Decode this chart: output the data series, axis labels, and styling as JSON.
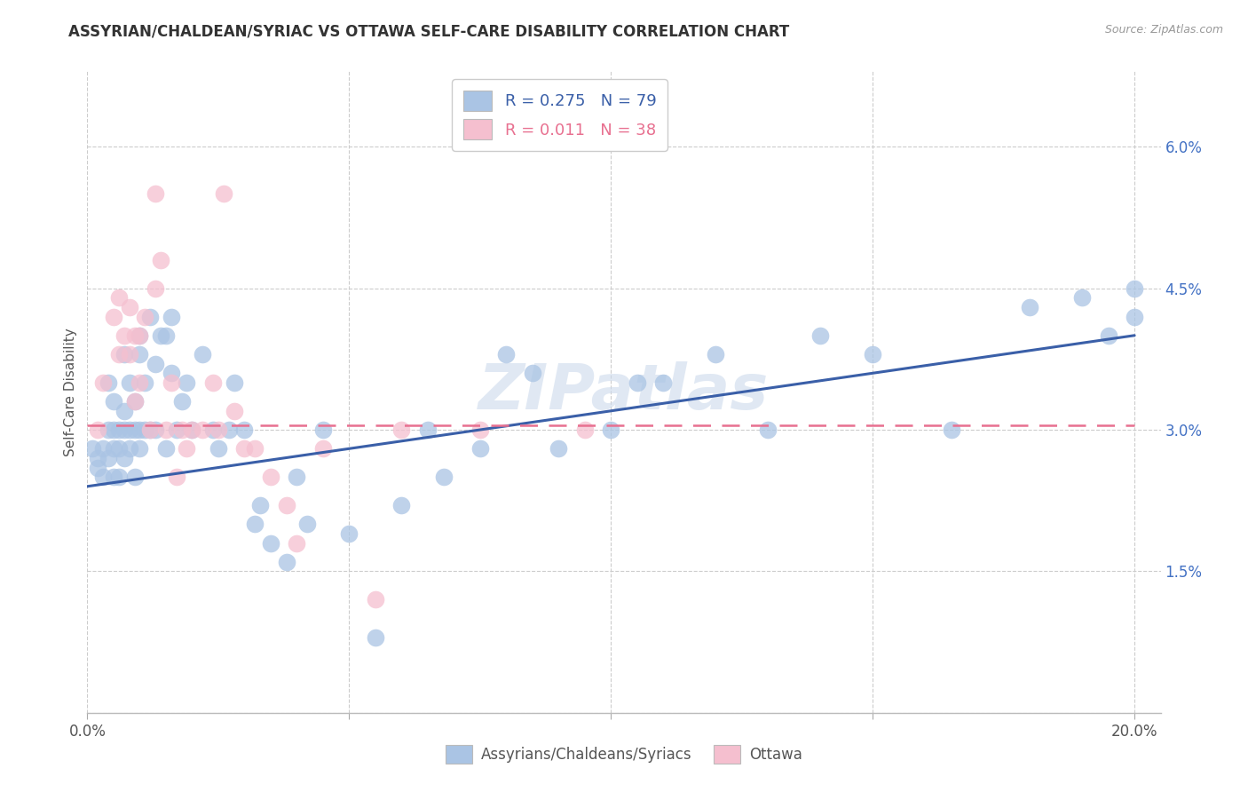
{
  "title": "ASSYRIAN/CHALDEAN/SYRIAC VS OTTAWA SELF-CARE DISABILITY CORRELATION CHART",
  "source": "Source: ZipAtlas.com",
  "ylabel": "Self-Care Disability",
  "ytick_labels": [
    "",
    "1.5%",
    "3.0%",
    "4.5%",
    "6.0%"
  ],
  "ytick_values": [
    0.0,
    0.015,
    0.03,
    0.045,
    0.06
  ],
  "xtick_positions": [
    0.0,
    0.05,
    0.1,
    0.15,
    0.2
  ],
  "xlim": [
    0.0,
    0.205
  ],
  "ylim": [
    0.0,
    0.068
  ],
  "legend1_R": "0.275",
  "legend1_N": "79",
  "legend2_R": "0.011",
  "legend2_N": "38",
  "scatter_blue_color": "#aac4e4",
  "scatter_pink_color": "#f5bfcf",
  "line_blue_color": "#3a5fa8",
  "line_pink_color": "#e87090",
  "watermark": "ZIPatlas",
  "background_color": "#ffffff",
  "grid_color": "#cccccc",
  "blue_scatter_x": [
    0.001,
    0.002,
    0.002,
    0.003,
    0.003,
    0.004,
    0.004,
    0.004,
    0.005,
    0.005,
    0.005,
    0.005,
    0.006,
    0.006,
    0.006,
    0.007,
    0.007,
    0.007,
    0.007,
    0.008,
    0.008,
    0.008,
    0.009,
    0.009,
    0.009,
    0.01,
    0.01,
    0.01,
    0.01,
    0.011,
    0.011,
    0.012,
    0.012,
    0.013,
    0.013,
    0.014,
    0.015,
    0.015,
    0.016,
    0.016,
    0.017,
    0.018,
    0.019,
    0.02,
    0.022,
    0.024,
    0.025,
    0.027,
    0.028,
    0.03,
    0.032,
    0.033,
    0.035,
    0.038,
    0.04,
    0.042,
    0.045,
    0.05,
    0.055,
    0.06,
    0.065,
    0.068,
    0.075,
    0.08,
    0.085,
    0.09,
    0.1,
    0.105,
    0.11,
    0.12,
    0.13,
    0.14,
    0.15,
    0.165,
    0.18,
    0.19,
    0.195,
    0.2,
    0.2
  ],
  "blue_scatter_y": [
    0.028,
    0.027,
    0.026,
    0.025,
    0.028,
    0.03,
    0.027,
    0.035,
    0.025,
    0.033,
    0.028,
    0.03,
    0.025,
    0.03,
    0.028,
    0.032,
    0.027,
    0.038,
    0.03,
    0.03,
    0.028,
    0.035,
    0.025,
    0.03,
    0.033,
    0.028,
    0.04,
    0.03,
    0.038,
    0.03,
    0.035,
    0.03,
    0.042,
    0.037,
    0.03,
    0.04,
    0.04,
    0.028,
    0.036,
    0.042,
    0.03,
    0.033,
    0.035,
    0.03,
    0.038,
    0.03,
    0.028,
    0.03,
    0.035,
    0.03,
    0.02,
    0.022,
    0.018,
    0.016,
    0.025,
    0.02,
    0.03,
    0.019,
    0.008,
    0.022,
    0.03,
    0.025,
    0.028,
    0.038,
    0.036,
    0.028,
    0.03,
    0.035,
    0.035,
    0.038,
    0.03,
    0.04,
    0.038,
    0.03,
    0.043,
    0.044,
    0.04,
    0.042,
    0.045
  ],
  "pink_scatter_x": [
    0.002,
    0.003,
    0.005,
    0.006,
    0.006,
    0.007,
    0.008,
    0.008,
    0.009,
    0.009,
    0.01,
    0.01,
    0.011,
    0.012,
    0.013,
    0.013,
    0.014,
    0.015,
    0.016,
    0.017,
    0.018,
    0.019,
    0.02,
    0.022,
    0.024,
    0.025,
    0.026,
    0.028,
    0.03,
    0.032,
    0.035,
    0.038,
    0.04,
    0.045,
    0.055,
    0.06,
    0.075,
    0.095
  ],
  "pink_scatter_y": [
    0.03,
    0.035,
    0.042,
    0.038,
    0.044,
    0.04,
    0.043,
    0.038,
    0.04,
    0.033,
    0.04,
    0.035,
    0.042,
    0.03,
    0.055,
    0.045,
    0.048,
    0.03,
    0.035,
    0.025,
    0.03,
    0.028,
    0.03,
    0.03,
    0.035,
    0.03,
    0.055,
    0.032,
    0.028,
    0.028,
    0.025,
    0.022,
    0.018,
    0.028,
    0.012,
    0.03,
    0.03,
    0.03
  ],
  "blue_line_x0": 0.0,
  "blue_line_x1": 0.2,
  "blue_line_y0": 0.024,
  "blue_line_y1": 0.04,
  "pink_line_x0": 0.0,
  "pink_line_x1": 0.2,
  "pink_line_y0": 0.0305,
  "pink_line_y1": 0.0305
}
